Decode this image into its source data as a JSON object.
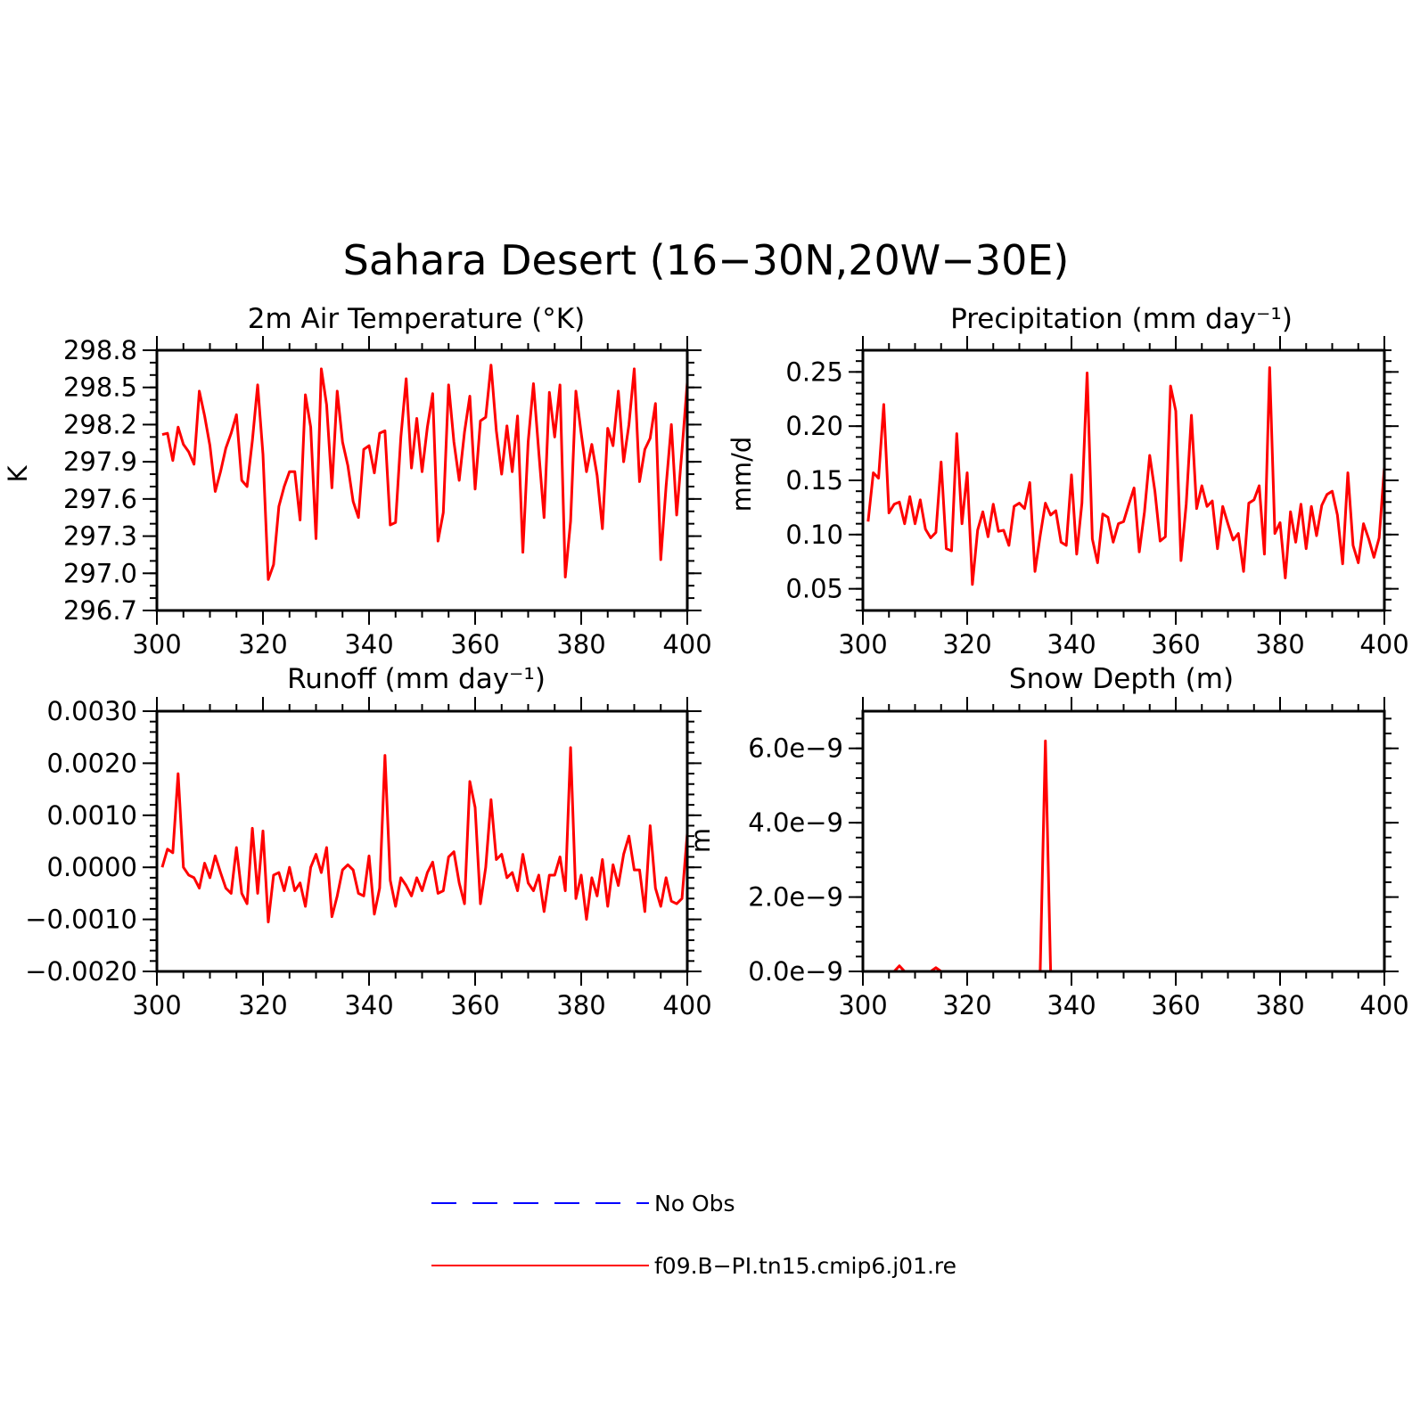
{
  "title": "Sahara Desert (16−30N,20W−30E)",
  "legend": [
    {
      "label": "No Obs",
      "color": "#0000ff",
      "dash": true
    },
    {
      "label": "f09.B−PI.tn15.cmip6.j01.re",
      "color": "#ff0000",
      "dash": false
    }
  ],
  "chart_data": [
    {
      "type": "line",
      "title": "2m Air Temperature (°K)",
      "ylabel": "K",
      "xlim": [
        300,
        400
      ],
      "xticks": [
        "300",
        "320",
        "340",
        "360",
        "380",
        "400"
      ],
      "ylim": [
        296.7,
        298.8
      ],
      "yticks": [
        "298.8",
        "298.5",
        "298.2",
        "297.9",
        "297.6",
        "297.3",
        "297.0",
        "296.7"
      ],
      "series": [
        {
          "color": "#ff0000",
          "x_start": 301,
          "x_step": 1,
          "values": [
            298.12,
            298.13,
            297.91,
            298.18,
            298.04,
            297.98,
            297.88,
            298.47,
            298.27,
            298.03,
            297.66,
            297.82,
            298.01,
            298.13,
            298.28,
            297.75,
            297.7,
            298.07,
            298.52,
            297.96,
            296.95,
            297.07,
            297.54,
            297.7,
            297.82,
            297.82,
            297.43,
            298.44,
            298.18,
            297.28,
            298.65,
            298.36,
            297.69,
            298.47,
            298.06,
            297.87,
            297.58,
            297.45,
            298.0,
            298.03,
            297.81,
            298.13,
            298.15,
            297.39,
            297.41,
            298.1,
            298.57,
            297.85,
            298.25,
            297.82,
            298.18,
            298.45,
            297.26,
            297.49,
            298.52,
            298.06,
            297.75,
            298.14,
            298.43,
            297.68,
            298.23,
            298.26,
            298.68,
            298.15,
            297.8,
            298.19,
            297.82,
            298.27,
            297.17,
            298.06,
            298.53,
            297.98,
            297.45,
            298.46,
            298.1,
            298.52,
            296.97,
            297.42,
            298.47,
            298.13,
            297.82,
            298.04,
            297.79,
            297.36,
            298.17,
            298.03,
            298.47,
            297.9,
            298.2,
            298.65,
            297.74,
            298.0,
            298.09,
            298.37,
            297.11,
            297.7,
            298.2,
            297.47,
            297.99,
            298.54
          ]
        }
      ]
    },
    {
      "type": "line",
      "title": "Precipitation (mm day⁻¹)",
      "ylabel": "mm/d",
      "xlim": [
        300,
        400
      ],
      "xticks": [
        "300",
        "320",
        "340",
        "360",
        "380",
        "400"
      ],
      "ylim": [
        0.03,
        0.27
      ],
      "yticks": [
        "0.25",
        "0.20",
        "0.15",
        "0.10",
        "0.05"
      ],
      "series": [
        {
          "color": "#ff0000",
          "x_start": 301,
          "x_step": 1,
          "values": [
            0.112,
            0.157,
            0.152,
            0.22,
            0.12,
            0.128,
            0.13,
            0.11,
            0.135,
            0.11,
            0.132,
            0.105,
            0.097,
            0.102,
            0.167,
            0.087,
            0.085,
            0.193,
            0.11,
            0.157,
            0.054,
            0.104,
            0.121,
            0.098,
            0.128,
            0.103,
            0.104,
            0.09,
            0.126,
            0.129,
            0.124,
            0.148,
            0.066,
            0.099,
            0.129,
            0.118,
            0.122,
            0.093,
            0.09,
            0.155,
            0.082,
            0.129,
            0.249,
            0.096,
            0.074,
            0.119,
            0.116,
            0.093,
            0.11,
            0.112,
            0.128,
            0.143,
            0.084,
            0.121,
            0.173,
            0.14,
            0.094,
            0.098,
            0.237,
            0.214,
            0.076,
            0.128,
            0.21,
            0.124,
            0.145,
            0.126,
            0.131,
            0.087,
            0.126,
            0.11,
            0.095,
            0.101,
            0.066,
            0.129,
            0.132,
            0.145,
            0.082,
            0.254,
            0.101,
            0.111,
            0.06,
            0.121,
            0.093,
            0.128,
            0.087,
            0.126,
            0.099,
            0.127,
            0.137,
            0.14,
            0.118,
            0.073,
            0.157,
            0.09,
            0.074,
            0.11,
            0.096,
            0.079,
            0.097,
            0.162
          ]
        }
      ]
    },
    {
      "type": "line",
      "title": "Runoff (mm day⁻¹)",
      "ylabel": "",
      "xlim": [
        300,
        400
      ],
      "xticks": [
        "300",
        "320",
        "340",
        "360",
        "380",
        "400"
      ],
      "ylim": [
        -0.002,
        0.003
      ],
      "yticks": [
        "0.0030",
        "0.0020",
        "0.0010",
        "0.0000",
        "−0.0010",
        "−0.0020"
      ],
      "series": [
        {
          "color": "#ff0000",
          "x_start": 301,
          "x_step": 1,
          "values": [
            0.0,
            0.00035,
            0.00028,
            0.0018,
            0.0,
            -0.00015,
            -0.0002,
            -0.0004,
            8e-05,
            -0.0002,
            0.00022,
            -0.0001,
            -0.0004,
            -0.0005,
            0.00038,
            -0.0005,
            -0.0007,
            0.00075,
            -0.0005,
            0.0007,
            -0.00105,
            -0.00015,
            -0.0001,
            -0.00045,
            0.0,
            -0.00045,
            -0.0003,
            -0.00075,
            0.0,
            0.00025,
            -0.0001,
            0.00038,
            -0.00095,
            -0.00055,
            -5e-05,
            5e-05,
            -5e-05,
            -0.0005,
            -0.00055,
            0.00022,
            -0.0009,
            -0.0004,
            0.00215,
            -0.00025,
            -0.00075,
            -0.0002,
            -0.00035,
            -0.00055,
            -0.0002,
            -0.00045,
            -0.0001,
            0.0001,
            -0.0005,
            -0.00045,
            0.0002,
            0.0003,
            -0.0003,
            -0.0007,
            0.00165,
            0.00115,
            -0.0007,
            0.0,
            0.0013,
            0.00015,
            0.00025,
            -0.0002,
            -0.0001,
            -0.00045,
            0.00025,
            -0.0003,
            -0.00045,
            -0.00015,
            -0.00085,
            -0.00015,
            -0.00015,
            0.0002,
            -0.00045,
            0.0023,
            -0.0006,
            -0.00015,
            -0.001,
            -0.0002,
            -0.00055,
            0.00015,
            -0.00075,
            5e-05,
            -0.00035,
            0.00025,
            0.0006,
            -5e-05,
            -5e-05,
            -0.00085,
            0.0008,
            -0.0004,
            -0.00075,
            -0.0002,
            -0.00065,
            -0.0007,
            -0.0006,
            0.00065
          ]
        }
      ]
    },
    {
      "type": "line",
      "title": "Snow Depth (m)",
      "ylabel": "m",
      "xlim": [
        300,
        400
      ],
      "xticks": [
        "300",
        "320",
        "340",
        "360",
        "380",
        "400"
      ],
      "ylim": [
        0.0,
        7e-09
      ],
      "yticks": [
        "6.0e−9",
        "4.0e−9",
        "2.0e−9",
        "0.0e−9"
      ],
      "series": [
        {
          "color": "#ff0000",
          "x_start": 301,
          "x_step": 1,
          "values": [
            0,
            0,
            0,
            0,
            0,
            0,
            1.5e-10,
            0,
            0,
            0,
            0,
            0,
            0,
            1e-10,
            0,
            0,
            0,
            0,
            0,
            0,
            0,
            0,
            0,
            0,
            0,
            0,
            0,
            0,
            0,
            0,
            0,
            0,
            0,
            0,
            6.2e-09,
            0,
            0,
            0,
            0,
            0,
            0,
            0,
            0,
            0,
            0,
            0,
            0,
            0,
            0,
            0,
            0,
            0,
            0,
            0,
            0,
            0,
            0,
            0,
            0,
            0,
            0,
            0,
            0,
            0,
            0,
            0,
            0,
            0,
            0,
            0,
            0,
            0,
            0,
            0,
            0,
            0,
            0,
            0,
            0,
            0,
            0,
            0,
            0,
            0,
            0,
            0,
            0,
            0,
            0,
            0,
            0,
            0,
            0,
            0,
            0,
            0,
            0,
            0,
            0,
            0
          ]
        }
      ]
    }
  ]
}
